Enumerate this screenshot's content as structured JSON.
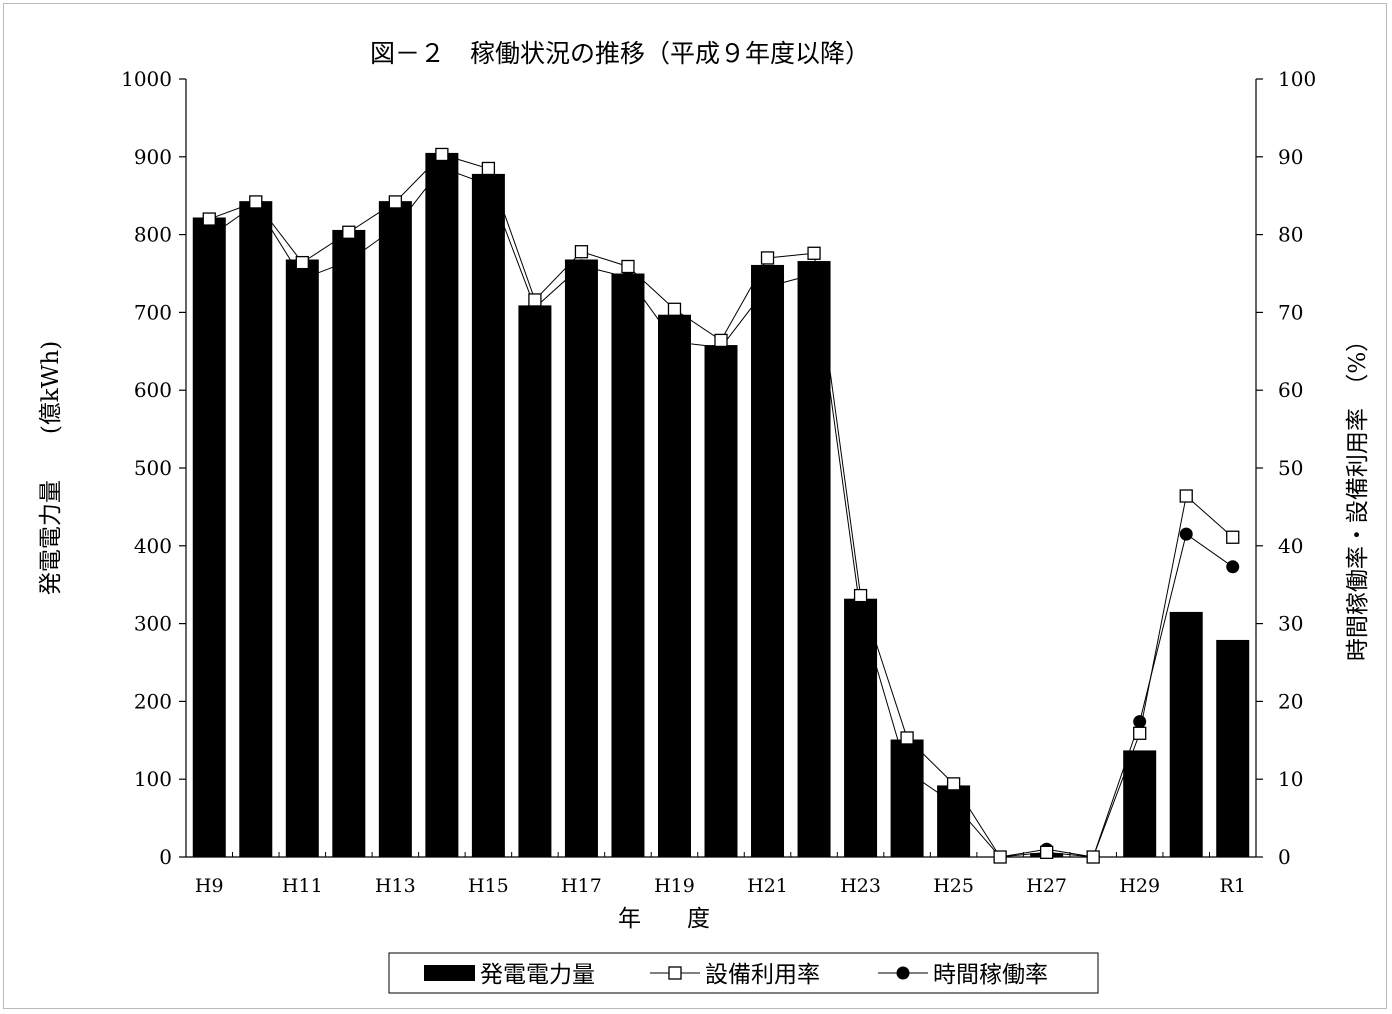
{
  "chart_data": {
    "type": "bar",
    "title": "図－２　稼働状況の推移（平成９年度以降）",
    "xlabel": "年　　度",
    "ylabel_left": "発電電力量　　(億kWh)",
    "ylabel_right": "時間稼働率・設備利用率　（%）",
    "ylim_left": [
      0,
      1000
    ],
    "ylim_right": [
      0,
      100
    ],
    "yticks_left": [
      "0",
      "100",
      "200",
      "300",
      "400",
      "500",
      "600",
      "700",
      "800",
      "900",
      "1000"
    ],
    "yticks_right": [
      "0",
      "10",
      "20",
      "30",
      "40",
      "50",
      "60",
      "70",
      "80",
      "90",
      "100"
    ],
    "categories": [
      "H9",
      "H10",
      "H11",
      "H12",
      "H13",
      "H14",
      "H15",
      "H16",
      "H17",
      "H18",
      "H19",
      "H20",
      "H21",
      "H22",
      "H23",
      "H24",
      "H25",
      "H26",
      "H27",
      "H28",
      "H29",
      "H30",
      "R1"
    ],
    "category_labels_shown": [
      "H9",
      "",
      "H11",
      "",
      "H13",
      "",
      "H15",
      "",
      "H17",
      "",
      "H19",
      "",
      "H21",
      "",
      "H23",
      "",
      "H25",
      "",
      "H27",
      "",
      "H29",
      "",
      "R1"
    ],
    "grid": false,
    "legend_position": "bottom-center",
    "series": [
      {
        "name": "発電電力量",
        "kind": "bar",
        "axis": "left",
        "color": "#000000",
        "values": [
          822,
          843,
          768,
          806,
          843,
          905,
          878,
          709,
          768,
          750,
          697,
          658,
          761,
          766,
          332,
          151,
          92,
          0,
          5,
          0,
          137,
          315,
          279
        ]
      },
      {
        "name": "設備利用率",
        "kind": "line",
        "marker": "open-square",
        "axis": "right",
        "color": "#000000",
        "values": [
          82.0,
          84.2,
          76.4,
          80.3,
          84.2,
          90.3,
          88.5,
          71.6,
          77.8,
          75.9,
          70.4,
          66.4,
          77.0,
          77.6,
          33.6,
          15.3,
          9.4,
          0.0,
          0.6,
          0.0,
          15.9,
          46.4,
          41.1
        ]
      },
      {
        "name": "時間稼働率",
        "kind": "line",
        "marker": "filled-circle",
        "axis": "right",
        "color": "#000000",
        "values": [
          79.7,
          83.9,
          74.3,
          76.6,
          80.9,
          88.6,
          86.4,
          70.6,
          76.0,
          74.5,
          66.2,
          65.5,
          73.3,
          74.9,
          31.4,
          11.0,
          6.9,
          0.0,
          1.0,
          0.0,
          17.4,
          41.5,
          37.3
        ]
      }
    ]
  }
}
